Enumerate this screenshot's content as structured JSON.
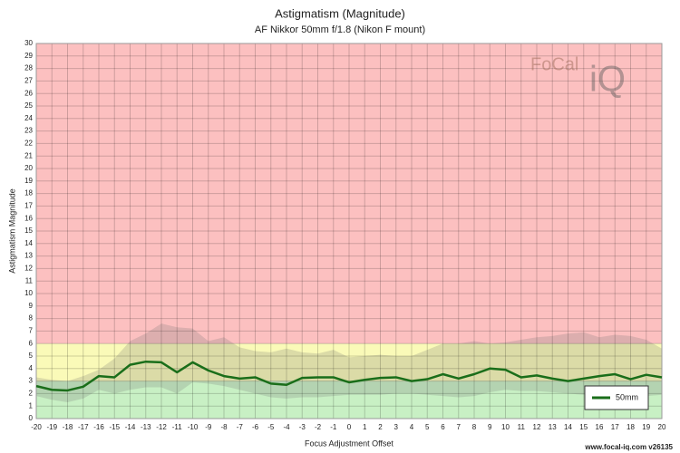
{
  "chart_data": {
    "type": "line",
    "title": "Astigmatism (Magnitude)",
    "subtitle": "AF Nikkor 50mm f/1.8 (Nikon F mount)",
    "xlabel": "Focus Adjustment Offset",
    "ylabel": "Astigmatism Magnitude",
    "x": [
      -20,
      -19,
      -18,
      -17,
      -16,
      -15,
      -14,
      -13,
      -12,
      -11,
      -10,
      -9,
      -8,
      -7,
      -6,
      -5,
      -4,
      -3,
      -2,
      -1,
      0,
      1,
      2,
      3,
      4,
      5,
      6,
      7,
      8,
      9,
      10,
      11,
      12,
      13,
      14,
      15,
      16,
      17,
      18,
      19,
      20
    ],
    "series": [
      {
        "name": "50mm",
        "color": "#1a6e1a",
        "values": [
          2.6,
          2.3,
          2.25,
          2.55,
          3.4,
          3.3,
          4.3,
          4.55,
          4.5,
          3.7,
          4.5,
          3.85,
          3.4,
          3.2,
          3.3,
          2.8,
          2.7,
          3.25,
          3.3,
          3.3,
          2.9,
          3.1,
          3.25,
          3.3,
          3.0,
          3.15,
          3.55,
          3.2,
          3.55,
          4.0,
          3.9,
          3.3,
          3.45,
          3.2,
          3.0,
          3.2,
          3.4,
          3.55,
          3.15,
          3.5,
          3.3
        ]
      }
    ],
    "band_upper": [
      3.3,
      3.1,
      3.0,
      3.4,
      3.9,
      4.8,
      6.2,
      6.8,
      7.6,
      7.3,
      7.2,
      6.2,
      6.5,
      5.7,
      5.4,
      5.3,
      5.6,
      5.3,
      5.2,
      5.5,
      4.9,
      5.0,
      5.1,
      5.0,
      5.0,
      5.5,
      6.0,
      6.0,
      6.2,
      6.0,
      6.1,
      6.3,
      6.5,
      6.6,
      6.8,
      6.9,
      6.5,
      6.7,
      6.6,
      6.3,
      5.6
    ],
    "band_lower": [
      1.8,
      1.5,
      1.3,
      1.6,
      2.3,
      2.0,
      2.3,
      2.5,
      2.5,
      2.0,
      2.9,
      2.8,
      2.6,
      2.3,
      2.0,
      1.7,
      1.6,
      1.7,
      1.7,
      1.8,
      1.9,
      1.9,
      1.9,
      2.0,
      2.0,
      1.9,
      1.8,
      1.7,
      1.8,
      2.1,
      2.3,
      2.2,
      2.2,
      2.1,
      2.0,
      1.9,
      1.9,
      1.9,
      1.7,
      1.8,
      1.9
    ],
    "band_color": "rgba(110,110,110,0.22)",
    "zones": [
      {
        "from": 0,
        "to": 3,
        "color": "#c8f0c4"
      },
      {
        "from": 3,
        "to": 6,
        "color": "#fafab8"
      },
      {
        "from": 6,
        "to": 30,
        "color": "#fcc0c0"
      }
    ],
    "xlim": [
      -20,
      20
    ],
    "ylim": [
      0,
      30
    ],
    "xticks": [
      -20,
      -19,
      -18,
      -17,
      -16,
      -15,
      -14,
      -13,
      -12,
      -11,
      -10,
      -9,
      -8,
      -7,
      -6,
      -5,
      -4,
      -3,
      -2,
      -1,
      0,
      1,
      2,
      3,
      4,
      5,
      6,
      7,
      8,
      9,
      10,
      11,
      12,
      13,
      14,
      15,
      16,
      17,
      18,
      19,
      20
    ],
    "yticks": [
      0,
      1,
      2,
      3,
      4,
      5,
      6,
      7,
      8,
      9,
      10,
      11,
      12,
      13,
      14,
      15,
      16,
      17,
      18,
      19,
      20,
      21,
      22,
      23,
      24,
      25,
      26,
      27,
      28,
      29,
      30
    ],
    "grid": true,
    "legend": "lower right",
    "watermark": [
      "FoCal",
      "iQ"
    ],
    "footer": "www.focal-iq.com  v26135"
  }
}
